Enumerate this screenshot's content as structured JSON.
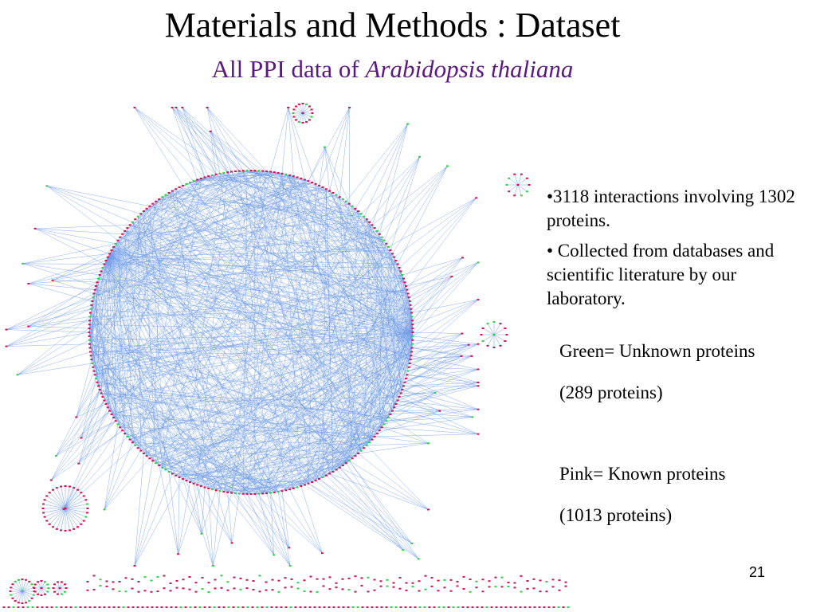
{
  "slide": {
    "title": "Materials and Methods : Dataset",
    "subtitle_prefix": "All PPI data of ",
    "subtitle_species": "Arabidopsis thaliana",
    "bullets": [
      "•3118 interactions involving 1302 proteins.",
      "• Collected from databases and scientific literature by our laboratory."
    ],
    "legend": {
      "green_label": "Green= Unknown proteins",
      "green_count": "(289 proteins)",
      "pink_label": "Pink= Known proteins",
      "pink_count": "(1013 proteins)"
    },
    "page_number": "21"
  },
  "colors": {
    "edge": "#6f9be8",
    "known_protein": "#d6124f",
    "unknown_protein": "#2ad34a",
    "subtitle": "#5a1a82"
  }
}
